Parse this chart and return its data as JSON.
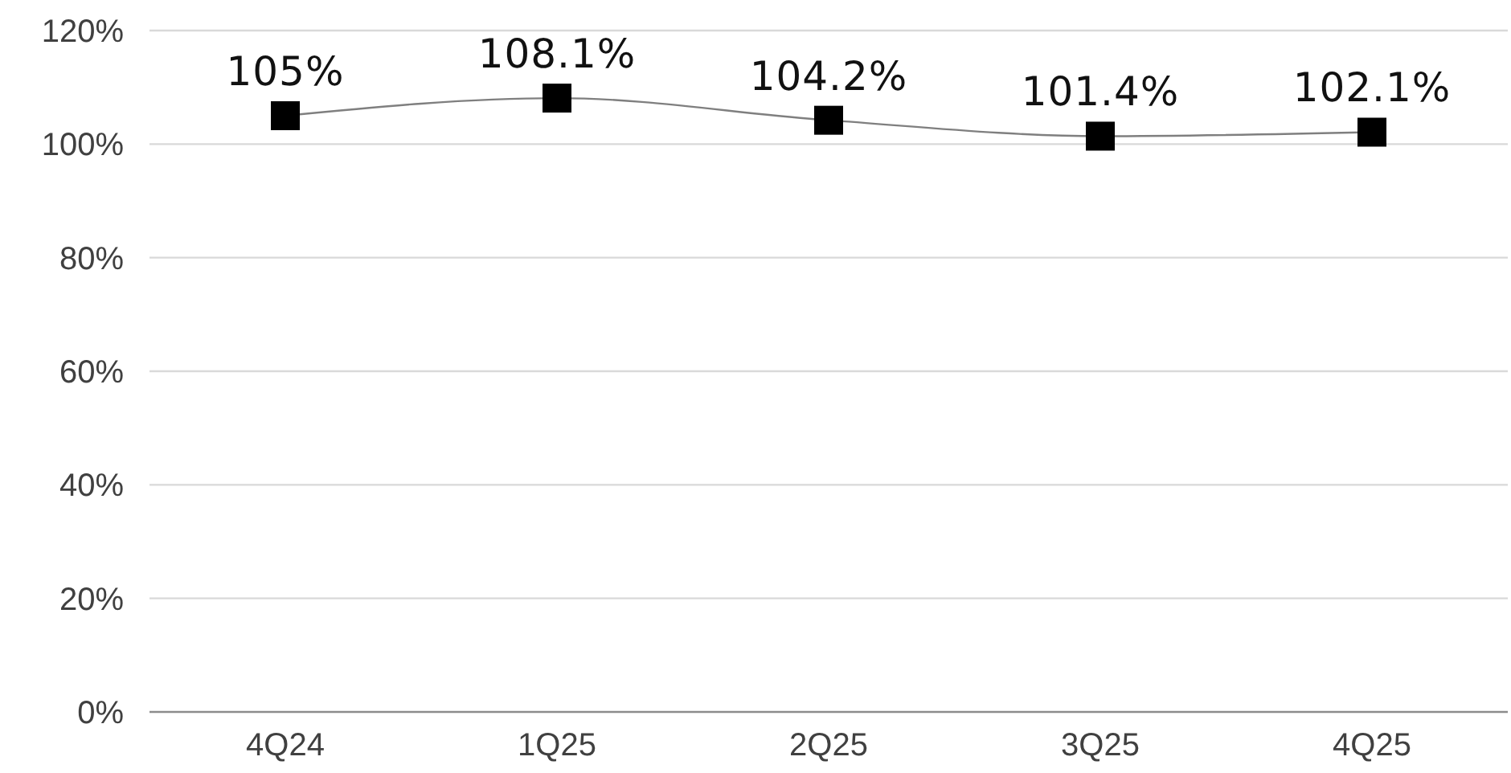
{
  "chart_data": {
    "type": "line",
    "categories": [
      "4Q24",
      "1Q25",
      "2Q25",
      "3Q25",
      "4Q25"
    ],
    "series": [
      {
        "color": "#000000",
        "values": [
          105,
          108.1,
          104.2,
          101.4,
          102.1
        ],
        "value_labels": [
          "105%",
          "108.1%",
          "104.2%",
          "101.4%",
          "102.1%"
        ]
      }
    ],
    "ylim": [
      0,
      120
    ],
    "yticks": [
      {
        "value": 0,
        "label": "0%"
      },
      {
        "value": 20,
        "label": "20%"
      },
      {
        "value": 40,
        "label": "40%"
      },
      {
        "value": 60,
        "label": "60%"
      },
      {
        "value": 80,
        "label": "80%"
      },
      {
        "value": 100,
        "label": "100%"
      },
      {
        "value": 120,
        "label": "120%"
      }
    ],
    "grid": "y",
    "marker": "square",
    "line_style": "solid"
  }
}
